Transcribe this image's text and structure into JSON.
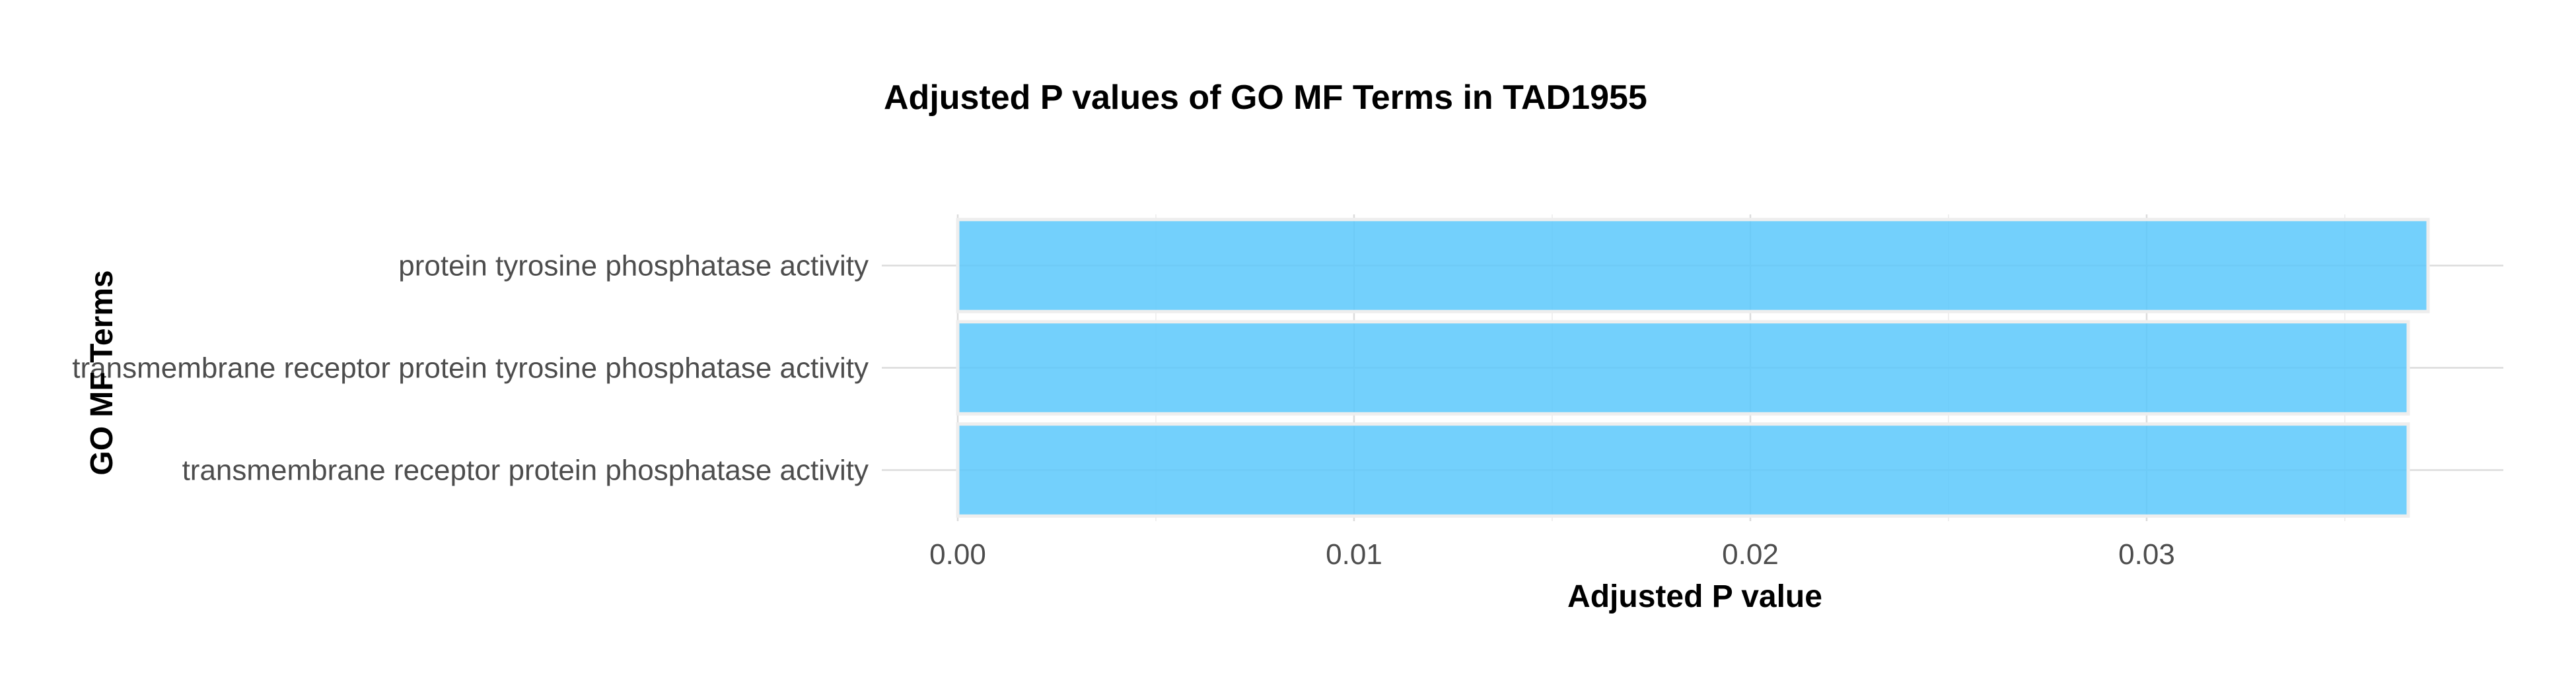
{
  "chart_data": {
    "type": "bar",
    "orientation": "horizontal",
    "title": "Adjusted P values of GO MF Terms in TAD1955",
    "xlabel": "Adjusted P value",
    "ylabel": "GO MF Terms",
    "categories": [
      "protein tyrosine phosphatase activity",
      "transmembrane receptor protein tyrosine phosphatase activity",
      "transmembrane receptor protein phosphatase activity"
    ],
    "values": [
      0.0371,
      0.0366,
      0.0366
    ],
    "xlim": [
      0,
      0.039
    ],
    "x_ticks": [
      0,
      0.01,
      0.02,
      0.03
    ],
    "x_tick_labels": [
      "0.00",
      "0.01",
      "0.02",
      "0.03"
    ],
    "bar_color": "#5BC8FB",
    "grid": true,
    "legend": "none"
  }
}
